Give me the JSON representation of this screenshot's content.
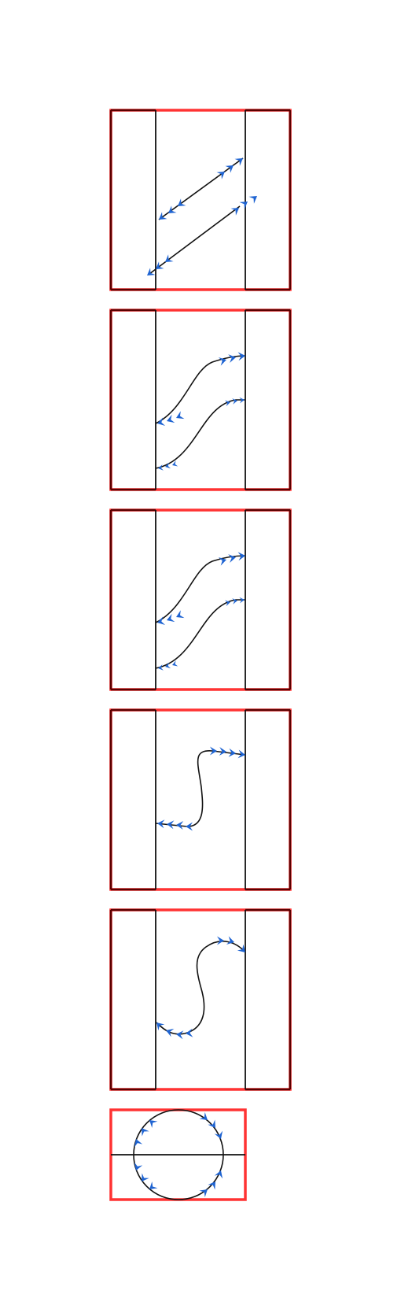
{
  "colors": {
    "frame_outer": "#ff3333",
    "frame_inner": "#5a0000",
    "line": "#111111",
    "arrow": "#1f64d2"
  },
  "panels": [
    {
      "id": "panel-1",
      "kind": "three-lane",
      "connectors": [
        "straight-diagonal",
        "straight-diagonal"
      ]
    },
    {
      "id": "panel-2",
      "kind": "three-lane",
      "connectors": [
        "s-curve",
        "s-curve"
      ]
    },
    {
      "id": "panel-3",
      "kind": "three-lane",
      "connectors": [
        "s-curve",
        "s-curve"
      ]
    },
    {
      "id": "panel-4",
      "kind": "three-lane",
      "connectors": [
        "vertical-s-curve"
      ]
    },
    {
      "id": "panel-5",
      "kind": "three-lane",
      "connectors": [
        "vertical-s-curve"
      ]
    },
    {
      "id": "panel-6",
      "kind": "split-box",
      "connectors": [
        "upper-arc",
        "lower-arc"
      ]
    }
  ]
}
